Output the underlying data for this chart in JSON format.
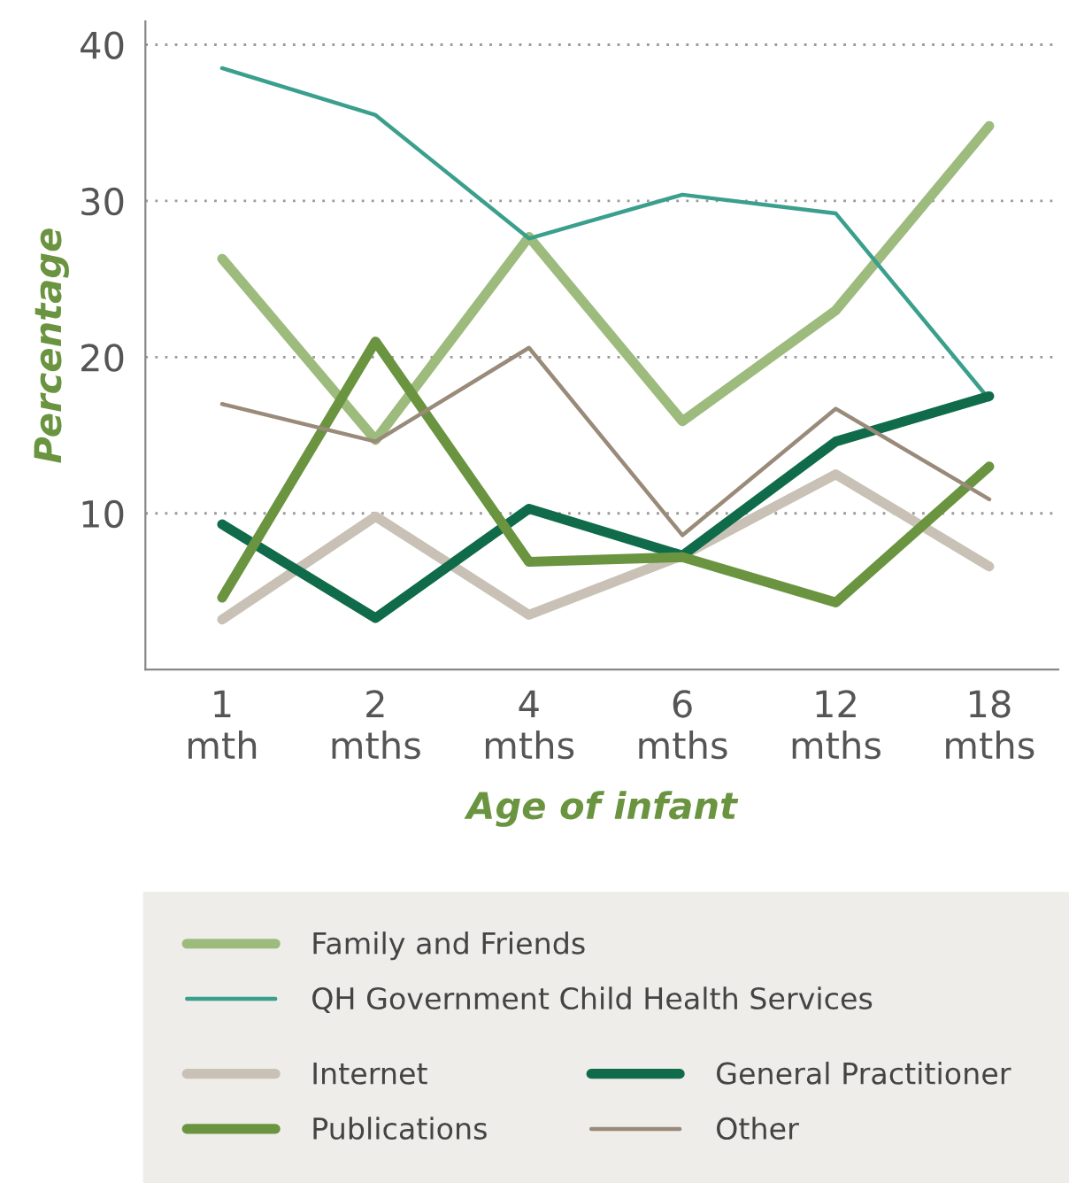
{
  "chart_data": {
    "type": "line",
    "xlabel": "Age of infant",
    "ylabel": "Percentage",
    "categories": [
      "1\nmth",
      "2\nmths",
      "4\nmths",
      "6\nmths",
      "12\nmths",
      "18\nmths"
    ],
    "series": [
      {
        "name": "Family and Friends",
        "color": "#9dbb7c",
        "values": [
          26.3,
          14.7,
          27.7,
          15.9,
          23.0,
          34.8
        ]
      },
      {
        "name": "QH Government Child Health Services",
        "color": "#3a9f8c",
        "values": [
          38.5,
          35.5,
          27.6,
          30.4,
          29.2,
          17.3
        ]
      },
      {
        "name": "Internet",
        "color": "#c9c1b6",
        "values": [
          3.2,
          9.8,
          3.5,
          7.3,
          12.5,
          6.6
        ]
      },
      {
        "name": "General Practitioner",
        "color": "#0f6b4a",
        "values": [
          9.3,
          3.3,
          10.3,
          7.3,
          14.6,
          17.5
        ]
      },
      {
        "name": "Publications",
        "color": "#6a9440",
        "values": [
          4.6,
          21.0,
          6.9,
          7.2,
          4.3,
          13.0
        ]
      },
      {
        "name": "Other",
        "color": "#9a8a7a",
        "values": [
          17.0,
          14.6,
          20.6,
          8.6,
          16.7,
          10.9
        ]
      }
    ],
    "ylim": [
      0,
      41.5
    ],
    "yticks": [
      10,
      20,
      30,
      40
    ],
    "grid": "y",
    "legend": "bottom",
    "marker": "none",
    "line_style": "solid"
  }
}
